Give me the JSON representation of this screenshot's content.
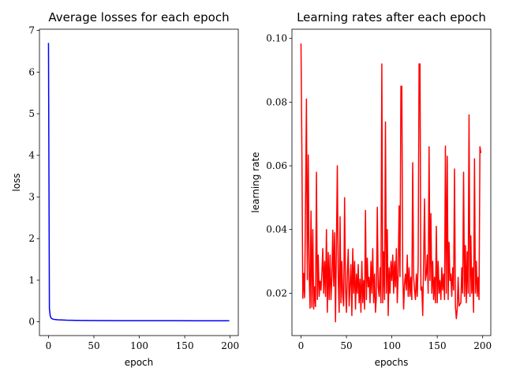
{
  "chart_data": [
    {
      "type": "line",
      "title": "Average losses for each epoch",
      "xlabel": "epoch",
      "ylabel": "loss",
      "xlim": [
        -9.95,
        208.95
      ],
      "ylim": [
        -0.33,
        7.03
      ],
      "xticks": [
        0,
        50,
        100,
        150,
        200
      ],
      "yticks": [
        0,
        1,
        2,
        3,
        4,
        5,
        6,
        7
      ],
      "grid": false,
      "series": [
        {
          "color": "#0000ff",
          "x": [
            0,
            1,
            2,
            3,
            4,
            5,
            6,
            8,
            10,
            15,
            20,
            30,
            40,
            60,
            80,
            100,
            120,
            140,
            160,
            180,
            199
          ],
          "y": [
            6.7,
            0.32,
            0.13,
            0.09,
            0.075,
            0.065,
            0.06,
            0.055,
            0.05,
            0.045,
            0.04,
            0.036,
            0.033,
            0.03,
            0.029,
            0.028,
            0.027,
            0.027,
            0.026,
            0.026,
            0.025
          ]
        }
      ]
    },
    {
      "type": "line",
      "title": "Learning rates after each epoch",
      "xlabel": "epochs",
      "ylabel": "learning rate",
      "xlim": [
        -9.95,
        208.95
      ],
      "ylim": [
        0.0067,
        0.1029
      ],
      "xticks": [
        0,
        50,
        100,
        150,
        200
      ],
      "yticks": [
        0.02,
        0.04,
        0.06,
        0.08,
        0.1
      ],
      "ytick_labels": [
        "0.02",
        "0.04",
        "0.06",
        "0.08",
        "0.10"
      ],
      "grid": false,
      "series": [
        {
          "color": "#ff0000",
          "y": [
            0.0984,
            0.064,
            0.0184,
            0.0262,
            0.0186,
            0.048,
            0.081,
            0.0242,
            0.0634,
            0.026,
            0.0153,
            0.0458,
            0.0156,
            0.04,
            0.015,
            0.022,
            0.0158,
            0.058,
            0.018,
            0.032,
            0.019,
            0.0238,
            0.021,
            0.0262,
            0.034,
            0.02,
            0.03,
            0.019,
            0.04,
            0.014,
            0.0328,
            0.018,
            0.032,
            0.018,
            0.025,
            0.0398,
            0.0222,
            0.039,
            0.011,
            0.0348,
            0.06,
            0.025,
            0.014,
            0.044,
            0.017,
            0.03,
            0.019,
            0.016,
            0.05,
            0.022,
            0.014,
            0.026,
            0.0338,
            0.016,
            0.0226,
            0.029,
            0.013,
            0.034,
            0.02,
            0.03,
            0.015,
            0.026,
            0.02,
            0.029,
            0.017,
            0.0244,
            0.014,
            0.03,
            0.017,
            0.024,
            0.015,
            0.046,
            0.018,
            0.031,
            0.022,
            0.025,
            0.017,
            0.03,
            0.02,
            0.034,
            0.017,
            0.026,
            0.014,
            0.019,
            0.047,
            0.022,
            0.019,
            0.028,
            0.017,
            0.092,
            0.017,
            0.033,
            0.018,
            0.0738,
            0.02,
            0.04,
            0.013,
            0.028,
            0.02,
            0.03,
            0.024,
            0.032,
            0.02,
            0.03,
            0.022,
            0.034,
            0.017,
            0.026,
            0.0474,
            0.0252,
            0.085,
            0.085,
            0.027,
            0.015,
            0.023,
            0.026,
            0.021,
            0.032,
            0.019,
            0.028,
            0.019,
            0.025,
            0.018,
            0.061,
            0.025,
            0.021,
            0.018,
            0.026,
            0.019,
            0.029,
            0.092,
            0.092,
            0.021,
            0.022,
            0.013,
            0.03,
            0.0496,
            0.024,
            0.026,
            0.032,
            0.02,
            0.066,
            0.024,
            0.045,
            0.02,
            0.03,
            0.018,
            0.025,
            0.017,
            0.041,
            0.017,
            0.03,
            0.02,
            0.024,
            0.018,
            0.028,
            0.021,
            0.026,
            0.018,
            0.0662,
            0.02,
            0.063,
            0.018,
            0.036,
            0.024,
            0.026,
            0.019,
            0.028,
            0.021,
            0.059,
            0.016,
            0.012,
            0.015,
            0.025,
            0.016,
            0.0165,
            0.017,
            0.028,
            0.02,
            0.058,
            0.019,
            0.035,
            0.017,
            0.033,
            0.02,
            0.076,
            0.019,
            0.038,
            0.02,
            0.028,
            0.014,
            0.0622,
            0.02,
            0.03,
            0.019,
            0.025,
            0.018,
            0.066,
            0.064
          ]
        }
      ]
    }
  ]
}
